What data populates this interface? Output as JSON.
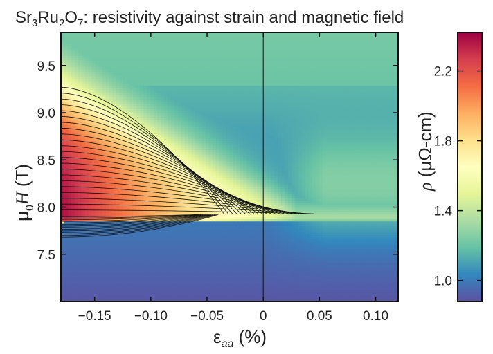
{
  "chart_data": {
    "type": "heatmap",
    "title": "Sr₃Ru₂O₇: resistivity against strain and magnetic field",
    "title_parts": {
      "pre": "Sr",
      "sub1": "3",
      "mid1": "Ru",
      "sub2": "2",
      "mid2": "O",
      "sub3": "7",
      "post": ": resistivity against strain and magnetic field"
    },
    "xlabel": "ε_aa (%)",
    "xlabel_parts": {
      "sym": "ε",
      "sub": "aa",
      "unit": " (%)"
    },
    "ylabel": "μ0H (T)",
    "ylabel_parts": {
      "sym": "μ",
      "sub": "0",
      "var": "H",
      "unit": "  (T)"
    },
    "colorbar_label": "ρ (μΩ-cm)",
    "colorbar_label_parts": {
      "sym": "ρ",
      "unit": " (μΩ-cm)"
    },
    "xlim": [
      -0.18,
      0.12
    ],
    "ylim": [
      7.0,
      9.85
    ],
    "clim": [
      0.88,
      2.42
    ],
    "x_ticks": [
      -0.15,
      -0.1,
      -0.05,
      0,
      0.05,
      0.1
    ],
    "x_tick_labels": [
      "−0.15",
      "−0.10",
      "−0.05",
      "0",
      "0.05",
      "0.10"
    ],
    "y_ticks": [
      7.5,
      8.0,
      8.5,
      9.0,
      9.5
    ],
    "y_tick_labels": [
      "7.5",
      "8.0",
      "8.5",
      "9.0",
      "9.5"
    ],
    "c_ticks": [
      1.0,
      1.4,
      1.8,
      2.2
    ],
    "c_tick_labels": [
      "1.0",
      "1.4",
      "1.8",
      "2.2"
    ],
    "colormap": "Spectral_r",
    "colormap_stops": [
      "#5e4fa2",
      "#3288bd",
      "#66c2a5",
      "#abdda4",
      "#e6f598",
      "#ffffbf",
      "#fee08b",
      "#fdae61",
      "#f46d43",
      "#d53e4f",
      "#9e0142"
    ],
    "vertical_reference_x": 0,
    "contours": "black isoresistivity lines",
    "grid": false
  }
}
